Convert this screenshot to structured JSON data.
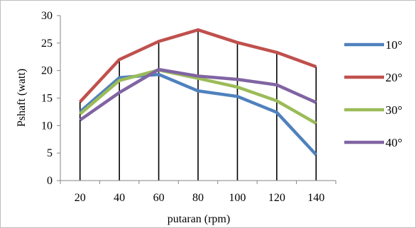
{
  "chart_data": {
    "type": "line",
    "title": "",
    "xlabel": "putaran (rpm)",
    "ylabel": "Pshaft  (watt)",
    "categories": [
      "20",
      "40",
      "60",
      "80",
      "100",
      "120",
      "140"
    ],
    "ylim": [
      0,
      30
    ],
    "yticks": [
      "0",
      "5",
      "10",
      "15",
      "20",
      "25",
      "30"
    ],
    "grid": "vertical drop lines at each category",
    "legend_position": "right",
    "series": [
      {
        "name": "10°",
        "color": "#4f81bd",
        "values": [
          12.5,
          18.7,
          19.3,
          16.3,
          15.3,
          12.4,
          4.7
        ]
      },
      {
        "name": "20°",
        "color": "#c0504d",
        "values": [
          14.3,
          22.0,
          25.3,
          27.4,
          25.1,
          23.3,
          20.7
        ]
      },
      {
        "name": "30°",
        "color": "#9bbb59",
        "values": [
          12.1,
          18.2,
          20.1,
          18.6,
          17.0,
          14.5,
          10.4
        ]
      },
      {
        "name": "40°",
        "color": "#8064a2",
        "values": [
          11.0,
          16.0,
          20.2,
          19.0,
          18.4,
          17.4,
          14.2
        ]
      }
    ]
  }
}
